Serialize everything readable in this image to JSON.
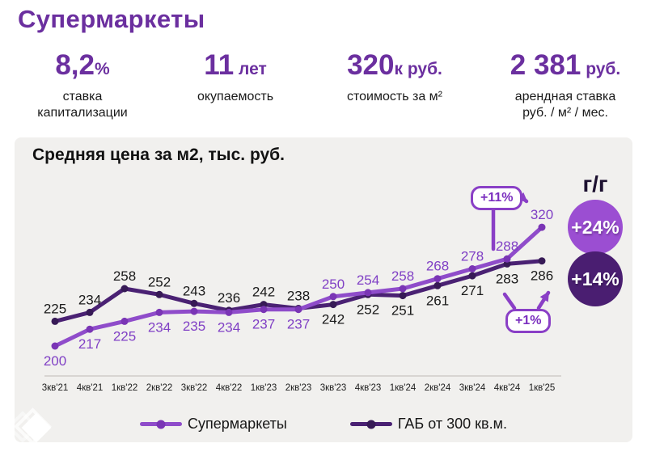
{
  "page": {
    "title": "Супермаркеты"
  },
  "stats": [
    {
      "value": "8,2",
      "unit": "%",
      "label_lines": [
        "ставка",
        "капитализации"
      ]
    },
    {
      "value": "11",
      "unit": " лет",
      "label_lines": [
        "окупаемость"
      ]
    },
    {
      "value": "320",
      "unit": "к руб.",
      "label_lines": [
        "стоимость за м²"
      ]
    },
    {
      "value": "2 381",
      "unit": " руб.",
      "label_lines": [
        "арендная ставка",
        "руб. / м² / мес."
      ]
    }
  ],
  "chart": {
    "title": "Средняя цена за м2, тыс. руб.",
    "yoy_label": "г/г",
    "badges": [
      {
        "text": "+11%"
      },
      {
        "text": "+1%"
      }
    ],
    "yoy_circles": [
      {
        "text": "+24%",
        "color": "#9b4ed2"
      },
      {
        "text": "+14%",
        "color": "#4a1e71"
      }
    ]
  },
  "colors": {
    "accent_purple": "#6b2f9f",
    "annotation_purple": "#8a3fc6",
    "panel_bg": "#f1f0ee",
    "axis_line": "#cfccc8",
    "text_dark": "#1a1a1a"
  },
  "chart_data": {
    "type": "line",
    "title": "Средняя цена за м2, тыс. руб.",
    "categories": [
      "3кв'21",
      "4кв'21",
      "1кв'22",
      "2кв'22",
      "3кв'22",
      "4кв'22",
      "1кв'23",
      "2кв'23",
      "3кв'23",
      "4кв'23",
      "1кв'24",
      "2кв'24",
      "3кв'24",
      "4кв'24",
      "1кв'25"
    ],
    "series": [
      {
        "name": "Супермаркеты",
        "color": "#8f4cca",
        "marker_color": "#7a35b5",
        "label_color": "#8040c5",
        "values": [
          200,
          217,
          225,
          234,
          235,
          234,
          237,
          237,
          250,
          254,
          258,
          268,
          278,
          288,
          320
        ],
        "label_side": [
          "below",
          "below",
          "below",
          "below",
          "below",
          "below",
          "below",
          "below",
          "above",
          "above",
          "above",
          "above",
          "above",
          "above",
          "above"
        ]
      },
      {
        "name": "ГАБ от 300 кв.м.",
        "color": "#4a2173",
        "marker_color": "#371a56",
        "label_color": "#1a1a1a",
        "values": [
          225,
          234,
          258,
          252,
          243,
          236,
          242,
          238,
          242,
          252,
          251,
          261,
          271,
          283,
          286
        ],
        "label_side": [
          "above",
          "above",
          "above",
          "above",
          "above",
          "above",
          "above",
          "above",
          "below",
          "below",
          "below",
          "below",
          "below",
          "below",
          "below"
        ]
      }
    ],
    "annotations": [
      {
        "text": "+11%",
        "meaning": "quarterly change of Супермаркеты, 288 → 320"
      },
      {
        "text": "+1%",
        "meaning": "quarterly change of ГАБ, 283 → 286"
      },
      {
        "text": "+24%",
        "meaning": "year-over-year change of Супермаркеты"
      },
      {
        "text": "+14%",
        "meaning": "year-over-year change of ГАБ"
      }
    ],
    "ylim": [
      195,
      330
    ],
    "grid": false,
    "legend_position": "bottom"
  }
}
